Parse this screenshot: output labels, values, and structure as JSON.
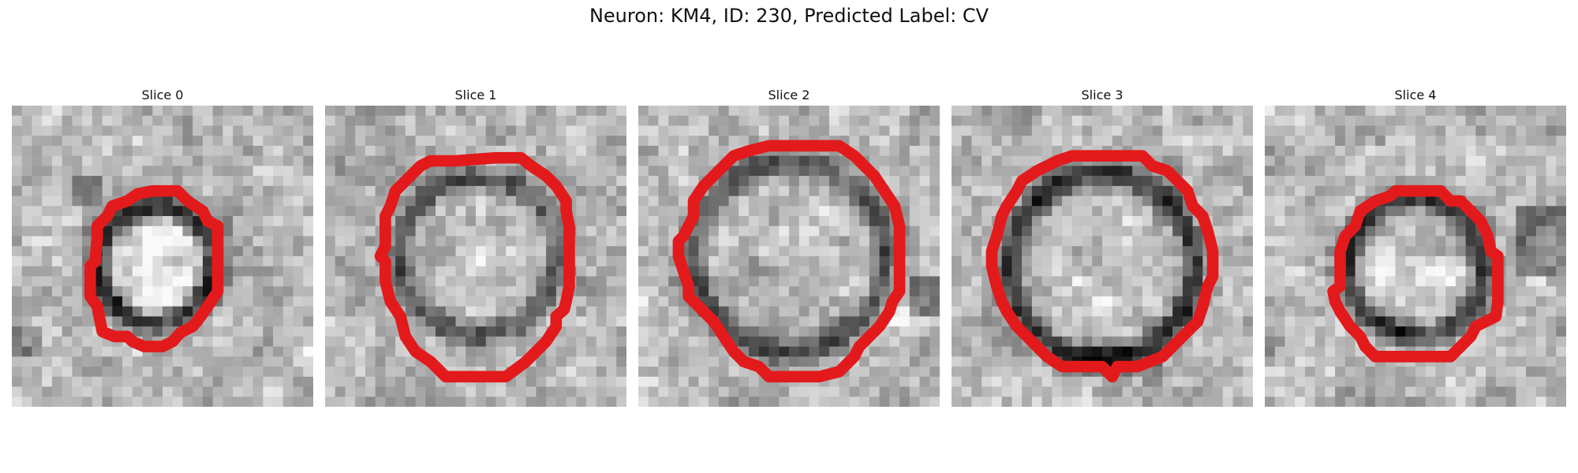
{
  "figure": {
    "title": "Neuron: KM4, ID: 230, Predicted Label: CV"
  },
  "panels": [
    {
      "title": "Slice 0",
      "ring": {
        "cx": 14.3,
        "cy": 15.8,
        "r": 5.8,
        "dark": 0.55,
        "inner": 0.18
      }
    },
    {
      "title": "Slice 1",
      "ring": {
        "cx": 15.2,
        "cy": 15.0,
        "r": 7.8,
        "dark": 0.38,
        "inner": 0.05
      }
    },
    {
      "title": "Slice 2",
      "ring": {
        "cx": 15.0,
        "cy": 15.0,
        "r": 9.4,
        "dark": 0.42,
        "inner": 0.02
      }
    },
    {
      "title": "Slice 3",
      "ring": {
        "cx": 15.0,
        "cy": 16.0,
        "r": 9.2,
        "dark": 0.52,
        "inner": 0.03
      }
    },
    {
      "title": "Slice 4",
      "ring": {
        "cx": 15.0,
        "cy": 16.0,
        "r": 6.8,
        "dark": 0.5,
        "inner": 0.1
      }
    }
  ],
  "colors": {
    "contour": "#e31a1c"
  },
  "icons": {
    "contour": "red-boundary-outline"
  }
}
